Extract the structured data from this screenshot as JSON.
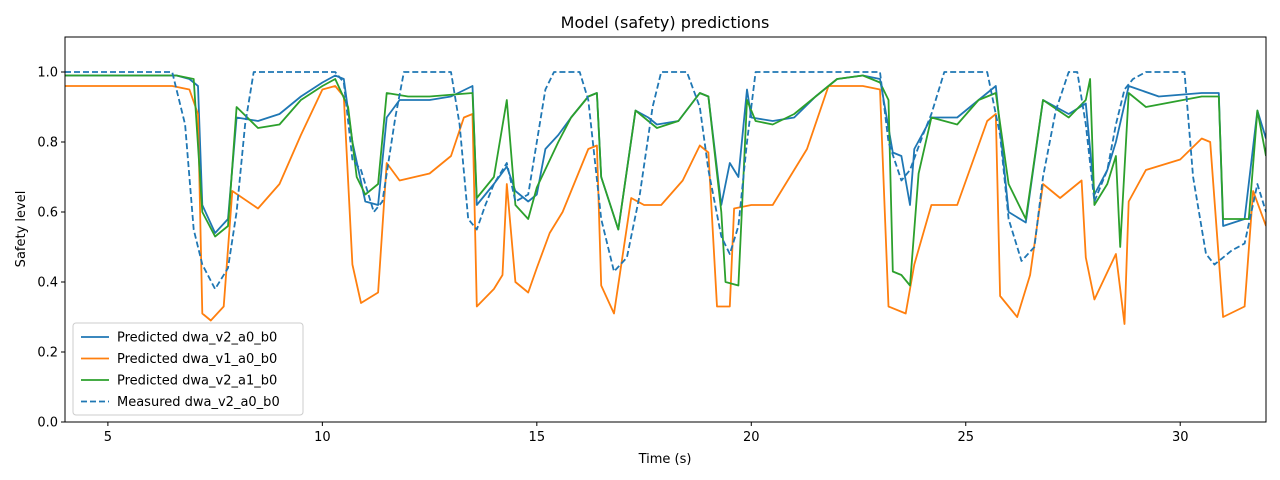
{
  "chart_data": {
    "type": "line",
    "title": "Model (safety) predictions",
    "xlabel": "Time (s)",
    "ylabel": "Safety level",
    "xlim": [
      4,
      32
    ],
    "ylim": [
      0,
      1.1
    ],
    "xticks": [
      5,
      10,
      15,
      20,
      25,
      30
    ],
    "yticks": [
      0.0,
      0.2,
      0.4,
      0.6,
      0.8,
      1.0
    ],
    "xtick_labels": [
      "5",
      "10",
      "15",
      "20",
      "25",
      "30"
    ],
    "ytick_labels": [
      "0.0",
      "0.2",
      "0.4",
      "0.6",
      "0.8",
      "1.0"
    ],
    "grid": false,
    "legend_position": "lower-left",
    "series": [
      {
        "name": "Predicted dwa_v2_a0_b0",
        "color": "#1f77b4",
        "dash": "solid",
        "points": [
          [
            4,
            0.99
          ],
          [
            6.6,
            0.99
          ],
          [
            6.9,
            0.98
          ],
          [
            7.1,
            0.96
          ],
          [
            7.2,
            0.62
          ],
          [
            7.5,
            0.54
          ],
          [
            7.8,
            0.58
          ],
          [
            8,
            0.87
          ],
          [
            8.5,
            0.86
          ],
          [
            9,
            0.88
          ],
          [
            9.5,
            0.93
          ],
          [
            10,
            0.97
          ],
          [
            10.3,
            0.99
          ],
          [
            10.5,
            0.98
          ],
          [
            10.7,
            0.8
          ],
          [
            11,
            0.63
          ],
          [
            11.3,
            0.62
          ],
          [
            11.5,
            0.87
          ],
          [
            11.8,
            0.92
          ],
          [
            12.5,
            0.92
          ],
          [
            13,
            0.93
          ],
          [
            13.5,
            0.96
          ],
          [
            13.6,
            0.62
          ],
          [
            14,
            0.68
          ],
          [
            14.3,
            0.73
          ],
          [
            14.5,
            0.66
          ],
          [
            14.8,
            0.63
          ],
          [
            15,
            0.65
          ],
          [
            15.2,
            0.78
          ],
          [
            15.5,
            0.82
          ],
          [
            15.8,
            0.87
          ],
          [
            16.2,
            0.93
          ],
          [
            16.4,
            0.94
          ],
          [
            16.5,
            0.7
          ],
          [
            16.9,
            0.55
          ],
          [
            17.3,
            0.89
          ],
          [
            17.6,
            0.87
          ],
          [
            17.8,
            0.85
          ],
          [
            18.3,
            0.86
          ],
          [
            18.8,
            0.94
          ],
          [
            19,
            0.93
          ],
          [
            19.3,
            0.62
          ],
          [
            19.5,
            0.74
          ],
          [
            19.7,
            0.7
          ],
          [
            19.9,
            0.95
          ],
          [
            20,
            0.87
          ],
          [
            20.5,
            0.86
          ],
          [
            21,
            0.87
          ],
          [
            21.5,
            0.93
          ],
          [
            22,
            0.98
          ],
          [
            22.6,
            0.99
          ],
          [
            23,
            0.98
          ],
          [
            23.3,
            0.77
          ],
          [
            23.5,
            0.76
          ],
          [
            23.7,
            0.62
          ],
          [
            23.8,
            0.78
          ],
          [
            24.2,
            0.87
          ],
          [
            24.8,
            0.87
          ],
          [
            25.3,
            0.92
          ],
          [
            25.7,
            0.96
          ],
          [
            26,
            0.6
          ],
          [
            26.4,
            0.57
          ],
          [
            26.8,
            0.92
          ],
          [
            27.4,
            0.88
          ],
          [
            27.8,
            0.91
          ],
          [
            28,
            0.65
          ],
          [
            28.3,
            0.72
          ],
          [
            28.5,
            0.8
          ],
          [
            28.8,
            0.96
          ],
          [
            29.5,
            0.93
          ],
          [
            30.5,
            0.94
          ],
          [
            30.9,
            0.94
          ],
          [
            31,
            0.56
          ],
          [
            31.5,
            0.58
          ],
          [
            31.8,
            0.89
          ],
          [
            32,
            0.81
          ]
        ]
      },
      {
        "name": "Predicted dwa_v1_a0_b0",
        "color": "#ff7f0e",
        "dash": "solid",
        "points": [
          [
            4,
            0.96
          ],
          [
            6.5,
            0.96
          ],
          [
            6.9,
            0.95
          ],
          [
            7.1,
            0.88
          ],
          [
            7.2,
            0.31
          ],
          [
            7.4,
            0.29
          ],
          [
            7.7,
            0.33
          ],
          [
            7.9,
            0.66
          ],
          [
            8.5,
            0.61
          ],
          [
            9,
            0.68
          ],
          [
            9.5,
            0.82
          ],
          [
            10,
            0.95
          ],
          [
            10.3,
            0.96
          ],
          [
            10.5,
            0.93
          ],
          [
            10.7,
            0.45
          ],
          [
            10.9,
            0.34
          ],
          [
            11.3,
            0.37
          ],
          [
            11.5,
            0.74
          ],
          [
            11.8,
            0.69
          ],
          [
            12.5,
            0.71
          ],
          [
            13,
            0.76
          ],
          [
            13.3,
            0.87
          ],
          [
            13.5,
            0.88
          ],
          [
            13.6,
            0.33
          ],
          [
            14,
            0.38
          ],
          [
            14.2,
            0.42
          ],
          [
            14.3,
            0.68
          ],
          [
            14.5,
            0.4
          ],
          [
            14.8,
            0.37
          ],
          [
            15,
            0.44
          ],
          [
            15.3,
            0.54
          ],
          [
            15.6,
            0.6
          ],
          [
            16.2,
            0.78
          ],
          [
            16.4,
            0.79
          ],
          [
            16.5,
            0.39
          ],
          [
            16.8,
            0.31
          ],
          [
            17.2,
            0.64
          ],
          [
            17.5,
            0.62
          ],
          [
            17.9,
            0.62
          ],
          [
            18.4,
            0.69
          ],
          [
            18.8,
            0.79
          ],
          [
            19,
            0.77
          ],
          [
            19.2,
            0.33
          ],
          [
            19.5,
            0.33
          ],
          [
            19.6,
            0.61
          ],
          [
            20,
            0.62
          ],
          [
            20.5,
            0.62
          ],
          [
            21.3,
            0.78
          ],
          [
            21.8,
            0.96
          ],
          [
            22.6,
            0.96
          ],
          [
            23,
            0.95
          ],
          [
            23.2,
            0.33
          ],
          [
            23.6,
            0.31
          ],
          [
            23.8,
            0.45
          ],
          [
            24.2,
            0.62
          ],
          [
            24.8,
            0.62
          ],
          [
            25.5,
            0.86
          ],
          [
            25.7,
            0.88
          ],
          [
            25.8,
            0.36
          ],
          [
            26.2,
            0.3
          ],
          [
            26.5,
            0.42
          ],
          [
            26.8,
            0.68
          ],
          [
            27.2,
            0.64
          ],
          [
            27.7,
            0.69
          ],
          [
            27.8,
            0.47
          ],
          [
            28,
            0.35
          ],
          [
            28.5,
            0.48
          ],
          [
            28.7,
            0.28
          ],
          [
            28.8,
            0.63
          ],
          [
            29.2,
            0.72
          ],
          [
            30,
            0.75
          ],
          [
            30.5,
            0.81
          ],
          [
            30.7,
            0.8
          ],
          [
            31,
            0.3
          ],
          [
            31.5,
            0.33
          ],
          [
            31.7,
            0.66
          ],
          [
            32,
            0.56
          ]
        ]
      },
      {
        "name": "Predicted dwa_v2_a1_b0",
        "color": "#2ca02c",
        "dash": "solid",
        "points": [
          [
            4,
            0.99
          ],
          [
            6.6,
            0.99
          ],
          [
            7,
            0.98
          ],
          [
            7.2,
            0.6
          ],
          [
            7.5,
            0.53
          ],
          [
            7.8,
            0.56
          ],
          [
            8,
            0.9
          ],
          [
            8.5,
            0.84
          ],
          [
            9,
            0.85
          ],
          [
            9.5,
            0.92
          ],
          [
            10,
            0.96
          ],
          [
            10.3,
            0.98
          ],
          [
            10.6,
            0.9
          ],
          [
            10.8,
            0.7
          ],
          [
            11,
            0.65
          ],
          [
            11.3,
            0.68
          ],
          [
            11.5,
            0.94
          ],
          [
            12,
            0.93
          ],
          [
            12.5,
            0.93
          ],
          [
            13.5,
            0.94
          ],
          [
            13.6,
            0.64
          ],
          [
            14,
            0.7
          ],
          [
            14.3,
            0.92
          ],
          [
            14.5,
            0.62
          ],
          [
            14.8,
            0.58
          ],
          [
            15,
            0.67
          ],
          [
            15.5,
            0.8
          ],
          [
            15.8,
            0.87
          ],
          [
            16.2,
            0.93
          ],
          [
            16.4,
            0.94
          ],
          [
            16.5,
            0.7
          ],
          [
            16.9,
            0.55
          ],
          [
            17.3,
            0.89
          ],
          [
            17.6,
            0.86
          ],
          [
            17.8,
            0.84
          ],
          [
            18.3,
            0.86
          ],
          [
            18.8,
            0.94
          ],
          [
            19,
            0.93
          ],
          [
            19.3,
            0.6
          ],
          [
            19.4,
            0.4
          ],
          [
            19.7,
            0.39
          ],
          [
            19.9,
            0.92
          ],
          [
            20.1,
            0.86
          ],
          [
            20.5,
            0.85
          ],
          [
            21,
            0.88
          ],
          [
            21.5,
            0.93
          ],
          [
            22,
            0.98
          ],
          [
            22.6,
            0.99
          ],
          [
            23,
            0.97
          ],
          [
            23.2,
            0.92
          ],
          [
            23.3,
            0.43
          ],
          [
            23.5,
            0.42
          ],
          [
            23.7,
            0.39
          ],
          [
            23.9,
            0.71
          ],
          [
            24.2,
            0.87
          ],
          [
            24.8,
            0.85
          ],
          [
            25.3,
            0.92
          ],
          [
            25.7,
            0.94
          ],
          [
            26,
            0.68
          ],
          [
            26.4,
            0.58
          ],
          [
            26.8,
            0.92
          ],
          [
            27.4,
            0.87
          ],
          [
            27.8,
            0.92
          ],
          [
            27.9,
            0.98
          ],
          [
            28,
            0.62
          ],
          [
            28.3,
            0.68
          ],
          [
            28.5,
            0.76
          ],
          [
            28.6,
            0.5
          ],
          [
            28.8,
            0.94
          ],
          [
            29.2,
            0.9
          ],
          [
            30.5,
            0.93
          ],
          [
            30.9,
            0.93
          ],
          [
            31,
            0.58
          ],
          [
            31.6,
            0.58
          ],
          [
            31.8,
            0.89
          ],
          [
            32,
            0.76
          ]
        ]
      },
      {
        "name": "Measured dwa_v2_a0_b0",
        "color": "#1f77b4",
        "dash": "dashed",
        "points": [
          [
            4,
            1.0
          ],
          [
            6.5,
            1.0
          ],
          [
            6.8,
            0.85
          ],
          [
            7,
            0.55
          ],
          [
            7.2,
            0.45
          ],
          [
            7.5,
            0.38
          ],
          [
            7.8,
            0.44
          ],
          [
            8,
            0.6
          ],
          [
            8.2,
            0.85
          ],
          [
            8.4,
            1.0
          ],
          [
            10.3,
            1.0
          ],
          [
            10.5,
            0.97
          ],
          [
            10.7,
            0.75
          ],
          [
            10.9,
            0.72
          ],
          [
            11.2,
            0.6
          ],
          [
            11.4,
            0.63
          ],
          [
            11.7,
            0.87
          ],
          [
            11.9,
            1.0
          ],
          [
            13,
            1.0
          ],
          [
            13.2,
            0.85
          ],
          [
            13.4,
            0.58
          ],
          [
            13.6,
            0.55
          ],
          [
            13.8,
            0.62
          ],
          [
            14,
            0.68
          ],
          [
            14.3,
            0.74
          ],
          [
            14.5,
            0.63
          ],
          [
            14.8,
            0.65
          ],
          [
            15,
            0.8
          ],
          [
            15.2,
            0.95
          ],
          [
            15.4,
            1.0
          ],
          [
            16,
            1.0
          ],
          [
            16.2,
            0.92
          ],
          [
            16.5,
            0.58
          ],
          [
            16.8,
            0.43
          ],
          [
            17.1,
            0.47
          ],
          [
            17.4,
            0.65
          ],
          [
            17.7,
            0.9
          ],
          [
            17.9,
            1.0
          ],
          [
            18.5,
            1.0
          ],
          [
            18.8,
            0.9
          ],
          [
            19,
            0.72
          ],
          [
            19.3,
            0.53
          ],
          [
            19.5,
            0.48
          ],
          [
            19.7,
            0.56
          ],
          [
            19.9,
            0.8
          ],
          [
            20.1,
            1.0
          ],
          [
            23,
            1.0
          ],
          [
            23.2,
            0.8
          ],
          [
            23.5,
            0.69
          ],
          [
            23.7,
            0.72
          ],
          [
            24,
            0.82
          ],
          [
            24.2,
            0.88
          ],
          [
            24.5,
            1.0
          ],
          [
            25.5,
            1.0
          ],
          [
            25.8,
            0.82
          ],
          [
            26,
            0.58
          ],
          [
            26.3,
            0.46
          ],
          [
            26.6,
            0.5
          ],
          [
            26.8,
            0.7
          ],
          [
            27.1,
            0.89
          ],
          [
            27.4,
            1.0
          ],
          [
            27.6,
            1.0
          ],
          [
            27.8,
            0.85
          ],
          [
            28,
            0.63
          ],
          [
            28.3,
            0.72
          ],
          [
            28.5,
            0.85
          ],
          [
            28.7,
            0.95
          ],
          [
            28.9,
            0.98
          ],
          [
            29.2,
            1.0
          ],
          [
            30.1,
            1.0
          ],
          [
            30.3,
            0.7
          ],
          [
            30.6,
            0.48
          ],
          [
            30.8,
            0.45
          ],
          [
            31.2,
            0.49
          ],
          [
            31.5,
            0.51
          ],
          [
            31.8,
            0.68
          ],
          [
            32,
            0.6
          ]
        ]
      }
    ]
  }
}
